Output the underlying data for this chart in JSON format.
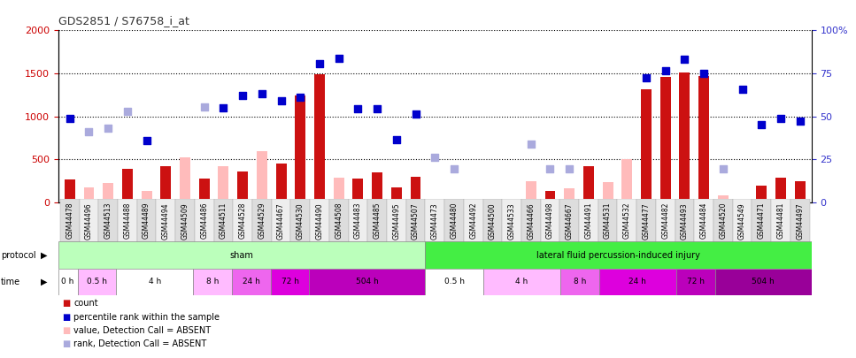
{
  "title": "GDS2851 / S76758_i_at",
  "samples": [
    "GSM44478",
    "GSM44496",
    "GSM44513",
    "GSM44488",
    "GSM44489",
    "GSM44494",
    "GSM44509",
    "GSM44486",
    "GSM44511",
    "GSM44528",
    "GSM44529",
    "GSM44467",
    "GSM44530",
    "GSM44490",
    "GSM44508",
    "GSM44483",
    "GSM44485",
    "GSM44495",
    "GSM44507",
    "GSM44473",
    "GSM44480",
    "GSM44492",
    "GSM44500",
    "GSM44533",
    "GSM44466",
    "GSM44498",
    "GSM44667",
    "GSM44491",
    "GSM44531",
    "GSM44532",
    "GSM44477",
    "GSM44482",
    "GSM44493",
    "GSM44484",
    "GSM44520",
    "GSM44549",
    "GSM44471",
    "GSM44481",
    "GSM44497"
  ],
  "count_values": [
    270,
    0,
    0,
    390,
    0,
    415,
    0,
    275,
    0,
    355,
    0,
    450,
    1240,
    1490,
    0,
    275,
    345,
    170,
    295,
    0,
    0,
    0,
    0,
    0,
    0,
    135,
    0,
    415,
    0,
    0,
    1320,
    1460,
    1510,
    1470,
    0,
    0,
    195,
    285,
    245
  ],
  "count_absent_values": [
    0,
    170,
    220,
    0,
    135,
    0,
    520,
    0,
    415,
    0,
    600,
    0,
    0,
    0,
    290,
    0,
    0,
    0,
    0,
    0,
    0,
    0,
    0,
    0,
    250,
    0,
    165,
    0,
    230,
    505,
    0,
    0,
    0,
    0,
    80,
    0,
    0,
    0,
    0
  ],
  "rank_values": [
    980,
    0,
    0,
    0,
    720,
    0,
    0,
    0,
    1100,
    1240,
    1265,
    1185,
    1225,
    1610,
    1680,
    1085,
    1090,
    730,
    1025,
    0,
    0,
    0,
    0,
    0,
    0,
    0,
    0,
    0,
    0,
    0,
    1445,
    1530,
    1665,
    1500,
    0,
    1315,
    900,
    980,
    940
  ],
  "rank_absent_values": [
    0,
    820,
    860,
    1060,
    0,
    0,
    0,
    1110,
    0,
    0,
    0,
    0,
    0,
    0,
    0,
    0,
    0,
    0,
    0,
    520,
    385,
    0,
    0,
    0,
    680,
    385,
    390,
    0,
    0,
    0,
    0,
    0,
    0,
    0,
    385,
    0,
    0,
    0,
    0
  ],
  "ylim_left": [
    0,
    2000
  ],
  "yticks_left": [
    0,
    500,
    1000,
    1500,
    2000
  ],
  "yticks_right_labels": [
    "0",
    "25",
    "50",
    "75",
    "100%"
  ],
  "yticks_right_vals": [
    0,
    25,
    50,
    75,
    100
  ],
  "bar_color_present": "#cc1111",
  "bar_color_absent": "#ffbbbb",
  "dot_color_present": "#0000cc",
  "dot_color_absent": "#aaaadd",
  "left_axis_color": "#cc0000",
  "right_axis_color": "#3333cc",
  "title_fontsize": 9,
  "xtick_fontsize": 5.5,
  "ytick_fontsize": 8,
  "proto_groups": [
    {
      "label": "sham",
      "start": 0,
      "end": 19,
      "color": "#bbffbb"
    },
    {
      "label": "lateral fluid percussion-induced injury",
      "start": 19,
      "end": 39,
      "color": "#44ee44"
    }
  ],
  "time_groups": [
    {
      "label": "0 h",
      "start": 0,
      "end": 1,
      "color": "#ffffff"
    },
    {
      "label": "0.5 h",
      "start": 1,
      "end": 3,
      "color": "#ffbbff"
    },
    {
      "label": "4 h",
      "start": 3,
      "end": 7,
      "color": "#ffffff"
    },
    {
      "label": "8 h",
      "start": 7,
      "end": 9,
      "color": "#ffbbff"
    },
    {
      "label": "24 h",
      "start": 9,
      "end": 11,
      "color": "#ee66ee"
    },
    {
      "label": "72 h",
      "start": 11,
      "end": 13,
      "color": "#dd00dd"
    },
    {
      "label": "504 h",
      "start": 13,
      "end": 19,
      "color": "#bb00bb"
    },
    {
      "label": "0.5 h",
      "start": 19,
      "end": 22,
      "color": "#ffffff"
    },
    {
      "label": "4 h",
      "start": 22,
      "end": 26,
      "color": "#ffbbff"
    },
    {
      "label": "8 h",
      "start": 26,
      "end": 28,
      "color": "#ee66ee"
    },
    {
      "label": "24 h",
      "start": 28,
      "end": 32,
      "color": "#dd00dd"
    },
    {
      "label": "72 h",
      "start": 32,
      "end": 34,
      "color": "#bb00bb"
    },
    {
      "label": "504 h",
      "start": 34,
      "end": 39,
      "color": "#990099"
    }
  ]
}
